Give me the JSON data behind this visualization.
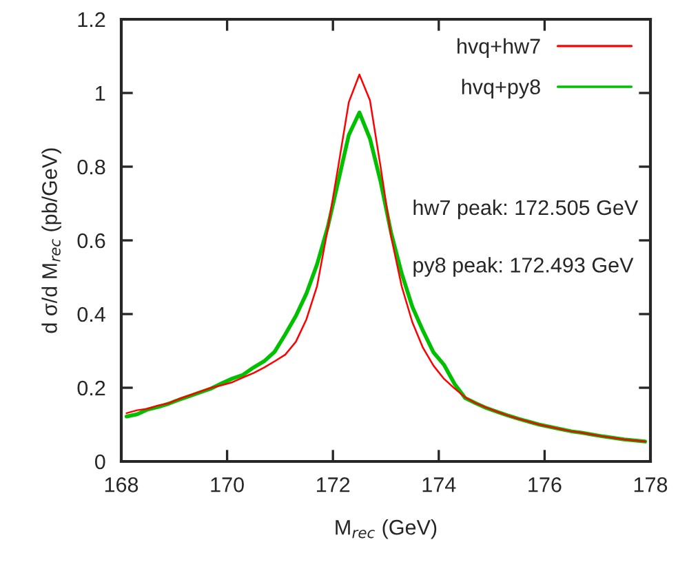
{
  "chart_data": {
    "type": "line",
    "xlabel": "M$_{rec}$ (GeV)",
    "ylabel": "d σ/d M$_{rec}$ (pb/GeV)",
    "x": [
      168.1,
      168.3,
      168.5,
      168.7,
      168.9,
      169.1,
      169.3,
      169.5,
      169.7,
      169.9,
      170.1,
      170.3,
      170.5,
      170.7,
      170.9,
      171.1,
      171.3,
      171.5,
      171.7,
      171.9,
      172.1,
      172.3,
      172.5,
      172.7,
      172.9,
      173.1,
      173.3,
      173.5,
      173.7,
      173.9,
      174.1,
      174.3,
      174.5,
      174.7,
      174.9,
      175.1,
      175.3,
      175.5,
      175.7,
      175.9,
      176.1,
      176.3,
      176.5,
      176.7,
      176.9,
      177.1,
      177.3,
      177.5,
      177.7,
      177.9
    ],
    "series": [
      {
        "name": "hvq+hw7",
        "color": "#ff0000",
        "values": [
          0.131,
          0.139,
          0.143,
          0.152,
          0.158,
          0.17,
          0.18,
          0.19,
          0.2,
          0.207,
          0.215,
          0.228,
          0.24,
          0.255,
          0.272,
          0.29,
          0.325,
          0.386,
          0.476,
          0.63,
          0.8,
          0.975,
          1.05,
          0.98,
          0.8,
          0.61,
          0.475,
          0.378,
          0.309,
          0.26,
          0.224,
          0.198,
          0.174,
          0.158,
          0.146,
          0.135,
          0.125,
          0.116,
          0.108,
          0.1,
          0.094,
          0.088,
          0.082,
          0.078,
          0.073,
          0.068,
          0.064,
          0.06,
          0.057,
          0.054
        ]
      },
      {
        "name": "hvq+py8",
        "color": "#00c000",
        "values": [
          0.122,
          0.128,
          0.141,
          0.148,
          0.157,
          0.168,
          0.178,
          0.188,
          0.198,
          0.212,
          0.225,
          0.235,
          0.255,
          0.272,
          0.298,
          0.345,
          0.395,
          0.456,
          0.535,
          0.635,
          0.76,
          0.886,
          0.947,
          0.876,
          0.76,
          0.62,
          0.51,
          0.42,
          0.355,
          0.296,
          0.262,
          0.21,
          0.172,
          0.158,
          0.145,
          0.135,
          0.125,
          0.116,
          0.108,
          0.1,
          0.094,
          0.088,
          0.082,
          0.078,
          0.073,
          0.068,
          0.064,
          0.06,
          0.057,
          0.054
        ]
      }
    ],
    "xlim": [
      168,
      178
    ],
    "xticks": [
      168,
      170,
      172,
      174,
      176,
      178
    ],
    "ylim": [
      0,
      1.2
    ],
    "yticks": [
      0,
      {
        "value": 0.2,
        "label": "0.2"
      },
      {
        "value": 0.4,
        "label": "0.4"
      },
      {
        "value": 0.6,
        "label": "0.6"
      },
      {
        "value": 0.8,
        "label": "0.8"
      },
      1,
      {
        "value": 1.2,
        "label": "1.2"
      }
    ],
    "annotations": [
      "hw7 peak: 172.505 GeV",
      "py8 peak: 172.493 GeV"
    ],
    "legend": "top right",
    "grid": false,
    "line_style": "solid",
    "marker": "none"
  }
}
